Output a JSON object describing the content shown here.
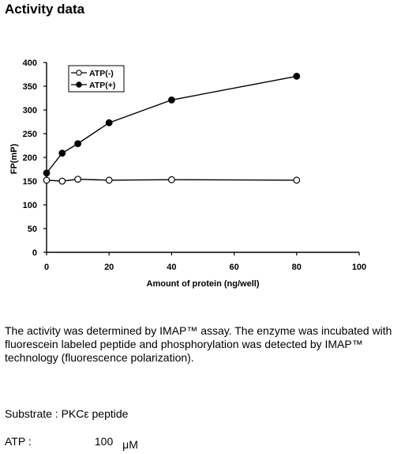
{
  "heading": "Activity data",
  "chart_data": {
    "type": "line",
    "xlabel": "Amount of protein (ng/well)",
    "ylabel": "FP(mP)",
    "xlim": [
      0,
      100
    ],
    "ylim": [
      0,
      400
    ],
    "xticks": [
      0,
      20,
      40,
      60,
      80,
      100
    ],
    "yticks": [
      0,
      50,
      100,
      150,
      200,
      250,
      300,
      350,
      400
    ],
    "grid": false,
    "legend": "top-left",
    "series": [
      {
        "name": "ATP(-)",
        "marker": "open-circle",
        "x": [
          0,
          5,
          10,
          20,
          40,
          80
        ],
        "values": [
          152,
          150,
          154,
          152,
          153,
          152
        ]
      },
      {
        "name": "ATP(+)",
        "marker": "filled-circle",
        "x": [
          0,
          5,
          10,
          20,
          40,
          80
        ],
        "values": [
          167,
          209,
          229,
          273,
          321,
          371
        ]
      }
    ]
  },
  "description": "The activity was determined by IMAP™ assay. The enzyme was incubated with fluorescein labeled peptide and  phosphorylation was detected by IMAP™ technology (fluorescence polarization).",
  "substrate": "Substrate : PKCε peptide",
  "atp": {
    "label": "ATP :",
    "value": "100",
    "unit": "μM"
  }
}
